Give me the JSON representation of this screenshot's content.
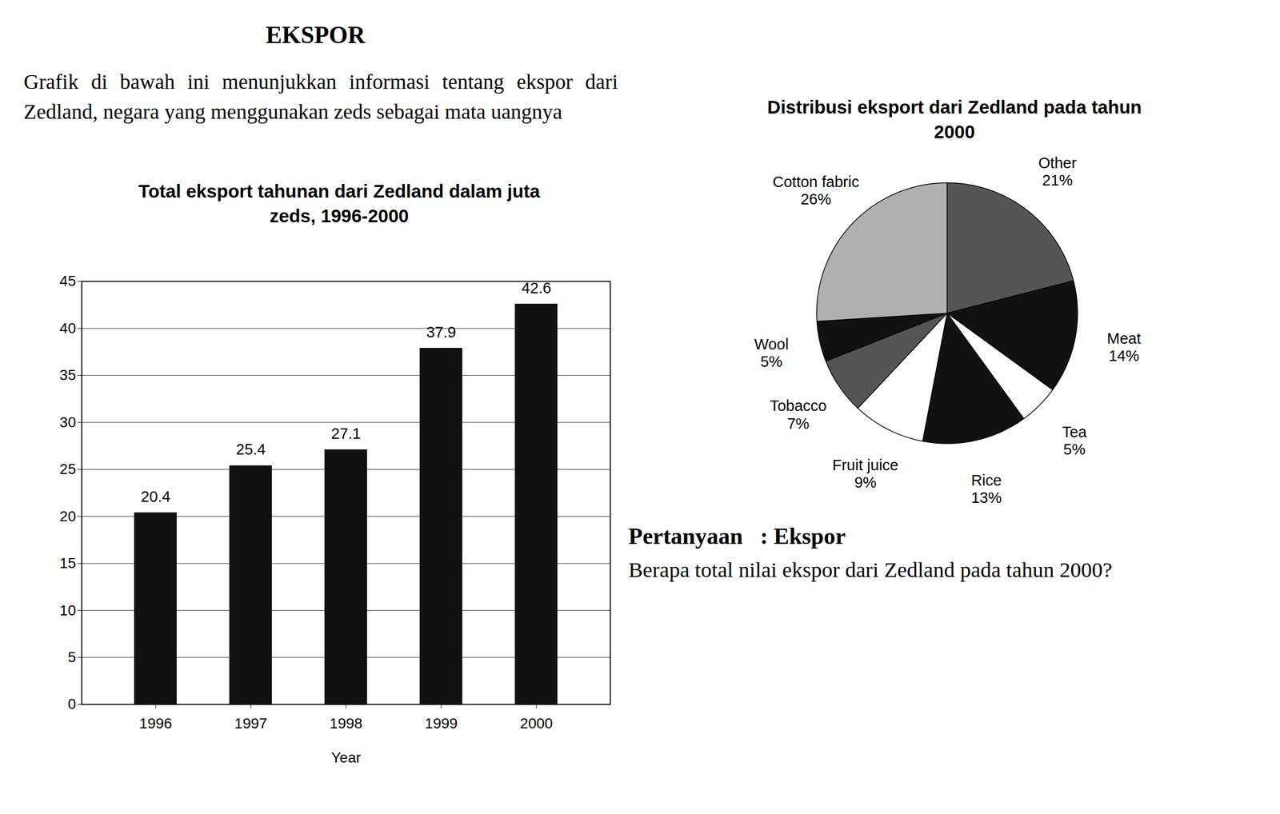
{
  "document": {
    "heading": "EKSPOR",
    "intro": "Grafik di bawah ini menunjukkan informasi tentang ekspor dari Zedland, negara yang menggunakan zeds sebagai mata uangnya",
    "question_heading": "Pertanyaan   : Ekspor",
    "question": "Berapa total nilai ekspor dari Zedland pada tahun 2000?"
  },
  "chart_data": [
    {
      "type": "bar",
      "title": "Total eksport tahunan dari Zedland dalam juta zeds, 1996-2000",
      "x_label": "Year",
      "categories": [
        "1996",
        "1997",
        "1998",
        "1999",
        "2000"
      ],
      "values": [
        20.4,
        25.4,
        27.1,
        37.9,
        42.6
      ],
      "color": "#111111",
      "ylim": [
        0,
        45
      ],
      "yticks": [
        0,
        5,
        10,
        15,
        20,
        25,
        30,
        35,
        40,
        45
      ],
      "grid": true,
      "data_labels": true
    },
    {
      "type": "pie",
      "title": "Distribusi eksport dari Zedland pada tahun 2000",
      "categories": [
        "Other",
        "Meat",
        "Tea",
        "Rice",
        "Fruit juice",
        "Tobacco",
        "Wool",
        "Cotton fabric"
      ],
      "values": [
        21,
        14,
        5,
        13,
        9,
        7,
        5,
        26
      ],
      "value_labels": [
        "21%",
        "14%",
        "5%",
        "13%",
        "9%",
        "7%",
        "5%",
        "26%"
      ],
      "colors": [
        "#555555",
        "#111111",
        "#ffffff",
        "#111111",
        "#ffffff",
        "#555555",
        "#111111",
        "#b0b0b0"
      ],
      "data_labels": true
    }
  ]
}
